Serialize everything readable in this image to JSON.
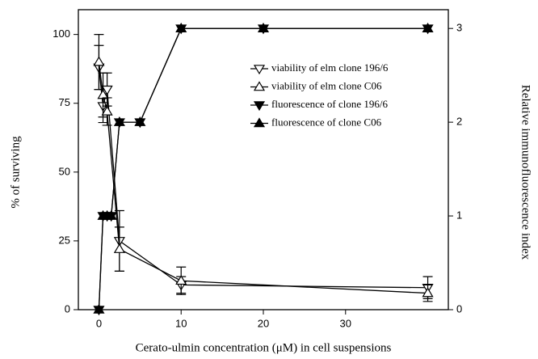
{
  "chart_data": {
    "type": "line",
    "x_label": "Cerato-ulmin concentration (μM) in cell suspensions",
    "y_label": "% of surviving",
    "y2_label": "Relative immunofluorescence index",
    "xlim": [
      -2.5,
      42.5
    ],
    "xticks": [
      0,
      10,
      20,
      30
    ],
    "ylim": [
      0,
      109
    ],
    "yticks": [
      0,
      25,
      50,
      75,
      100
    ],
    "y2lim": [
      0,
      3.2
    ],
    "y2ticks": [
      0,
      1,
      2,
      3
    ],
    "series": [
      {
        "name": "viability of elm clone 196/6",
        "color": "#000000",
        "marker": "triangle-down",
        "filled": false,
        "x": [
          0,
          0.5,
          1,
          2.5,
          10,
          40
        ],
        "values": [
          88,
          74,
          80,
          25,
          9,
          8
        ],
        "errors": [
          8,
          6,
          6,
          11,
          3,
          4
        ]
      },
      {
        "name": "viability of elm clone C06",
        "color": "#000000",
        "marker": "triangle-up",
        "filled": false,
        "x": [
          0,
          0.5,
          1,
          2.5,
          10,
          40
        ],
        "values": [
          90,
          78,
          72,
          22,
          10.5,
          6
        ],
        "errors": [
          10,
          8,
          5,
          8,
          5,
          3
        ]
      },
      {
        "name": "fluorescence of clone 196/6",
        "color": "#000000",
        "marker": "triangle-down",
        "filled": true,
        "axis": "y2",
        "x": [
          0,
          0.5,
          1,
          1.5,
          2.5,
          5,
          10,
          20,
          40
        ],
        "values": [
          0,
          1,
          1,
          1,
          2,
          2,
          3,
          3,
          3
        ]
      },
      {
        "name": "fluorescence of clone C06",
        "color": "#000000",
        "marker": "triangle-up",
        "filled": true,
        "axis": "y2",
        "x": [
          0,
          0.5,
          1,
          1.5,
          2.5,
          5,
          10,
          20,
          40
        ],
        "values": [
          0,
          1,
          1,
          1,
          2,
          2,
          3,
          3,
          3
        ]
      }
    ]
  }
}
